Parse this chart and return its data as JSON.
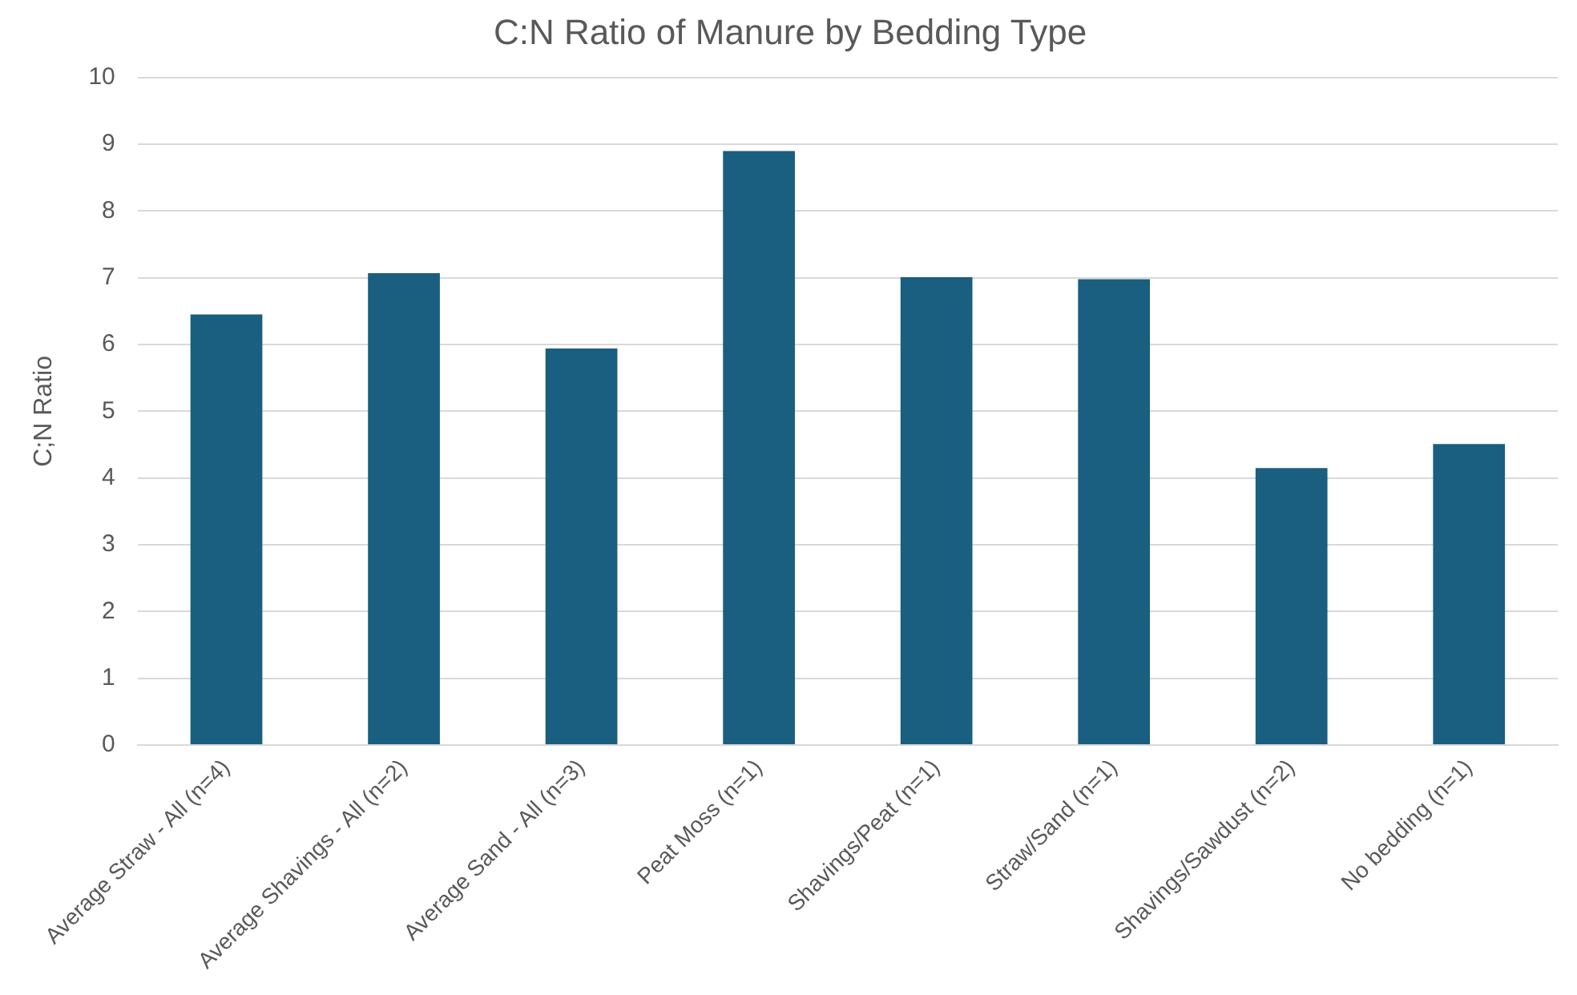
{
  "chart_data": {
    "type": "bar",
    "title": "C:N Ratio of Manure by Bedding Type",
    "ylabel": "C;N Ratio",
    "categories": [
      "Average Straw - All (n=4)",
      "Average Shavings - All (n=2)",
      "Average Sand - All (n=3)",
      "Peat Moss (n=1)",
      "Shavings/Peat (n=1)",
      "Straw/Sand (n=1)",
      "Shavings/Sawdust (n=2)",
      "No bedding (n=1)"
    ],
    "values": [
      6.45,
      7.07,
      5.94,
      8.9,
      7.01,
      6.98,
      4.15,
      4.51
    ],
    "color": "#1a5e80",
    "ylim": [
      0,
      10
    ],
    "yticks": [
      0,
      1,
      2,
      3,
      4,
      5,
      6,
      7,
      8,
      9,
      10
    ],
    "grid": "y",
    "legend": false
  }
}
